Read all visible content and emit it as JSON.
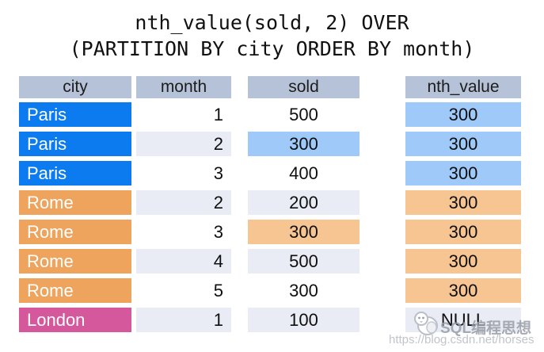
{
  "title": {
    "line1": "nth_value(sold, 2) OVER",
    "line2": "(PARTITION BY city ORDER BY month)"
  },
  "source_table": {
    "headers": {
      "city": "city",
      "month": "month",
      "sold": "sold"
    },
    "rows": [
      {
        "city": "Paris",
        "month": "1",
        "sold": "500",
        "city_bg": "#0b7bef",
        "row_bg": "#ffffff",
        "sold_bg": ""
      },
      {
        "city": "Paris",
        "month": "2",
        "sold": "300",
        "city_bg": "#0b7bef",
        "row_bg": "#e9ecf4",
        "sold_bg": "#9ec9f8"
      },
      {
        "city": "Paris",
        "month": "3",
        "sold": "400",
        "city_bg": "#0b7bef",
        "row_bg": "#ffffff",
        "sold_bg": ""
      },
      {
        "city": "Rome",
        "month": "2",
        "sold": "200",
        "city_bg": "#efa45e",
        "row_bg": "#e9ecf4",
        "sold_bg": ""
      },
      {
        "city": "Rome",
        "month": "3",
        "sold": "300",
        "city_bg": "#efa45e",
        "row_bg": "#ffffff",
        "sold_bg": "#f6c592"
      },
      {
        "city": "Rome",
        "month": "4",
        "sold": "500",
        "city_bg": "#efa45e",
        "row_bg": "#e9ecf4",
        "sold_bg": ""
      },
      {
        "city": "Rome",
        "month": "5",
        "sold": "300",
        "city_bg": "#efa45e",
        "row_bg": "#ffffff",
        "sold_bg": ""
      },
      {
        "city": "London",
        "month": "1",
        "sold": "100",
        "city_bg": "#d5589d",
        "row_bg": "#e9ecf4",
        "sold_bg": ""
      }
    ]
  },
  "result_column": {
    "header": "nth_value",
    "cells": [
      {
        "value": "300",
        "bg": "#9ec9f8"
      },
      {
        "value": "300",
        "bg": "#9ec9f8"
      },
      {
        "value": "300",
        "bg": "#9ec9f8"
      },
      {
        "value": "300",
        "bg": "#f6c592"
      },
      {
        "value": "300",
        "bg": "#f6c592"
      },
      {
        "value": "300",
        "bg": "#f6c592"
      },
      {
        "value": "300",
        "bg": "#f6c592"
      },
      {
        "value": "NULL",
        "bg": "#e9ecf4"
      }
    ]
  },
  "watermark": {
    "brand": "SQL编程思想",
    "url": "https://blog.csdn.net/horses",
    "logo": "penguin-icon"
  },
  "colors": {
    "header_bg": "#b6c2d7",
    "paris_blue": "#0b7bef",
    "rome_orange": "#efa45e",
    "london_pink": "#d5589d",
    "highlight_blue": "#9ec9f8",
    "highlight_orange": "#f6c592",
    "row_alt": "#e9ecf4",
    "title_text": "#111111"
  }
}
